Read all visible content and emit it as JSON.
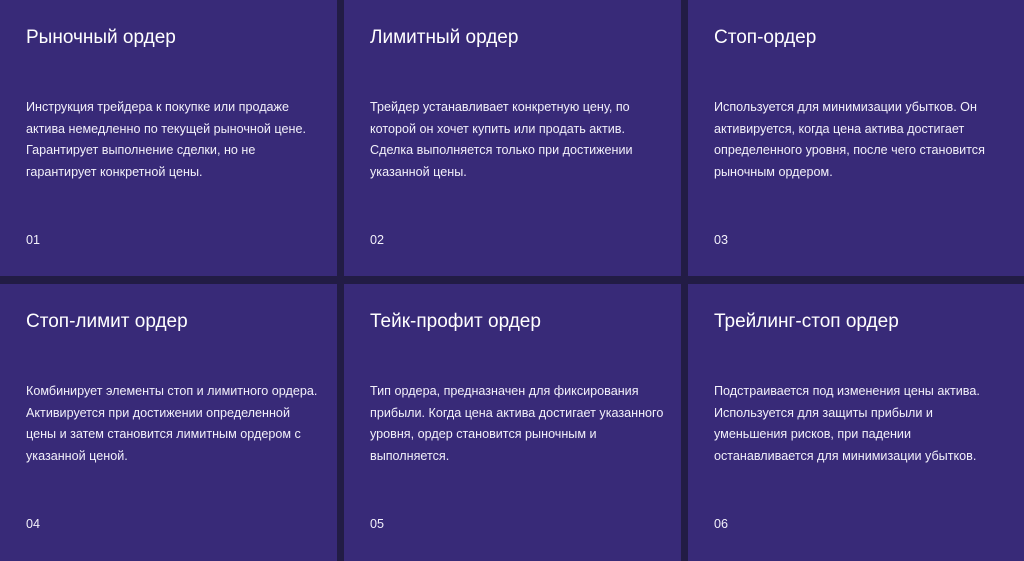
{
  "colors": {
    "card": "#382a78",
    "background": "#221c45",
    "text": "#ffffff"
  },
  "cards": [
    {
      "title": "Рыночный ордер",
      "description": "Инструкция трейдера к покупке или продаже актива немедленно по текущей рыночной цене. Гарантирует выполнение сделки, но не гарантирует конкретной цены.",
      "number": "01"
    },
    {
      "title": "Лимитный ордер",
      "description": "Трейдер устанавливает конкретную цену, по которой он хочет купить или продать актив. Сделка выполняется только при достижении указанной цены.",
      "number": "02"
    },
    {
      "title": "Стоп-ордер",
      "description": "Используется для минимизации убытков. Он активируется, когда цена актива достигает определенного уровня, после чего становится рыночным ордером.",
      "number": "03"
    },
    {
      "title": "Стоп-лимит ордер",
      "description": "Комбинирует элементы стоп и лимитного ордера. Активируется при достижении определенной цены и затем становится лимитным ордером с указанной ценой.",
      "number": "04"
    },
    {
      "title": "Тейк-профит ордер",
      "description": "Тип ордера, предназначен для фиксирования прибыли. Когда цена актива достигает указанного уровня, ордер становится рыночным и выполняется.",
      "number": "05"
    },
    {
      "title": "Трейлинг-стоп ордер",
      "description": "Подстраивается под изменения цены актива. Используется для защиты прибыли и уменьшения рисков, при падении останавливается для минимизации убытков.",
      "number": "06"
    }
  ]
}
